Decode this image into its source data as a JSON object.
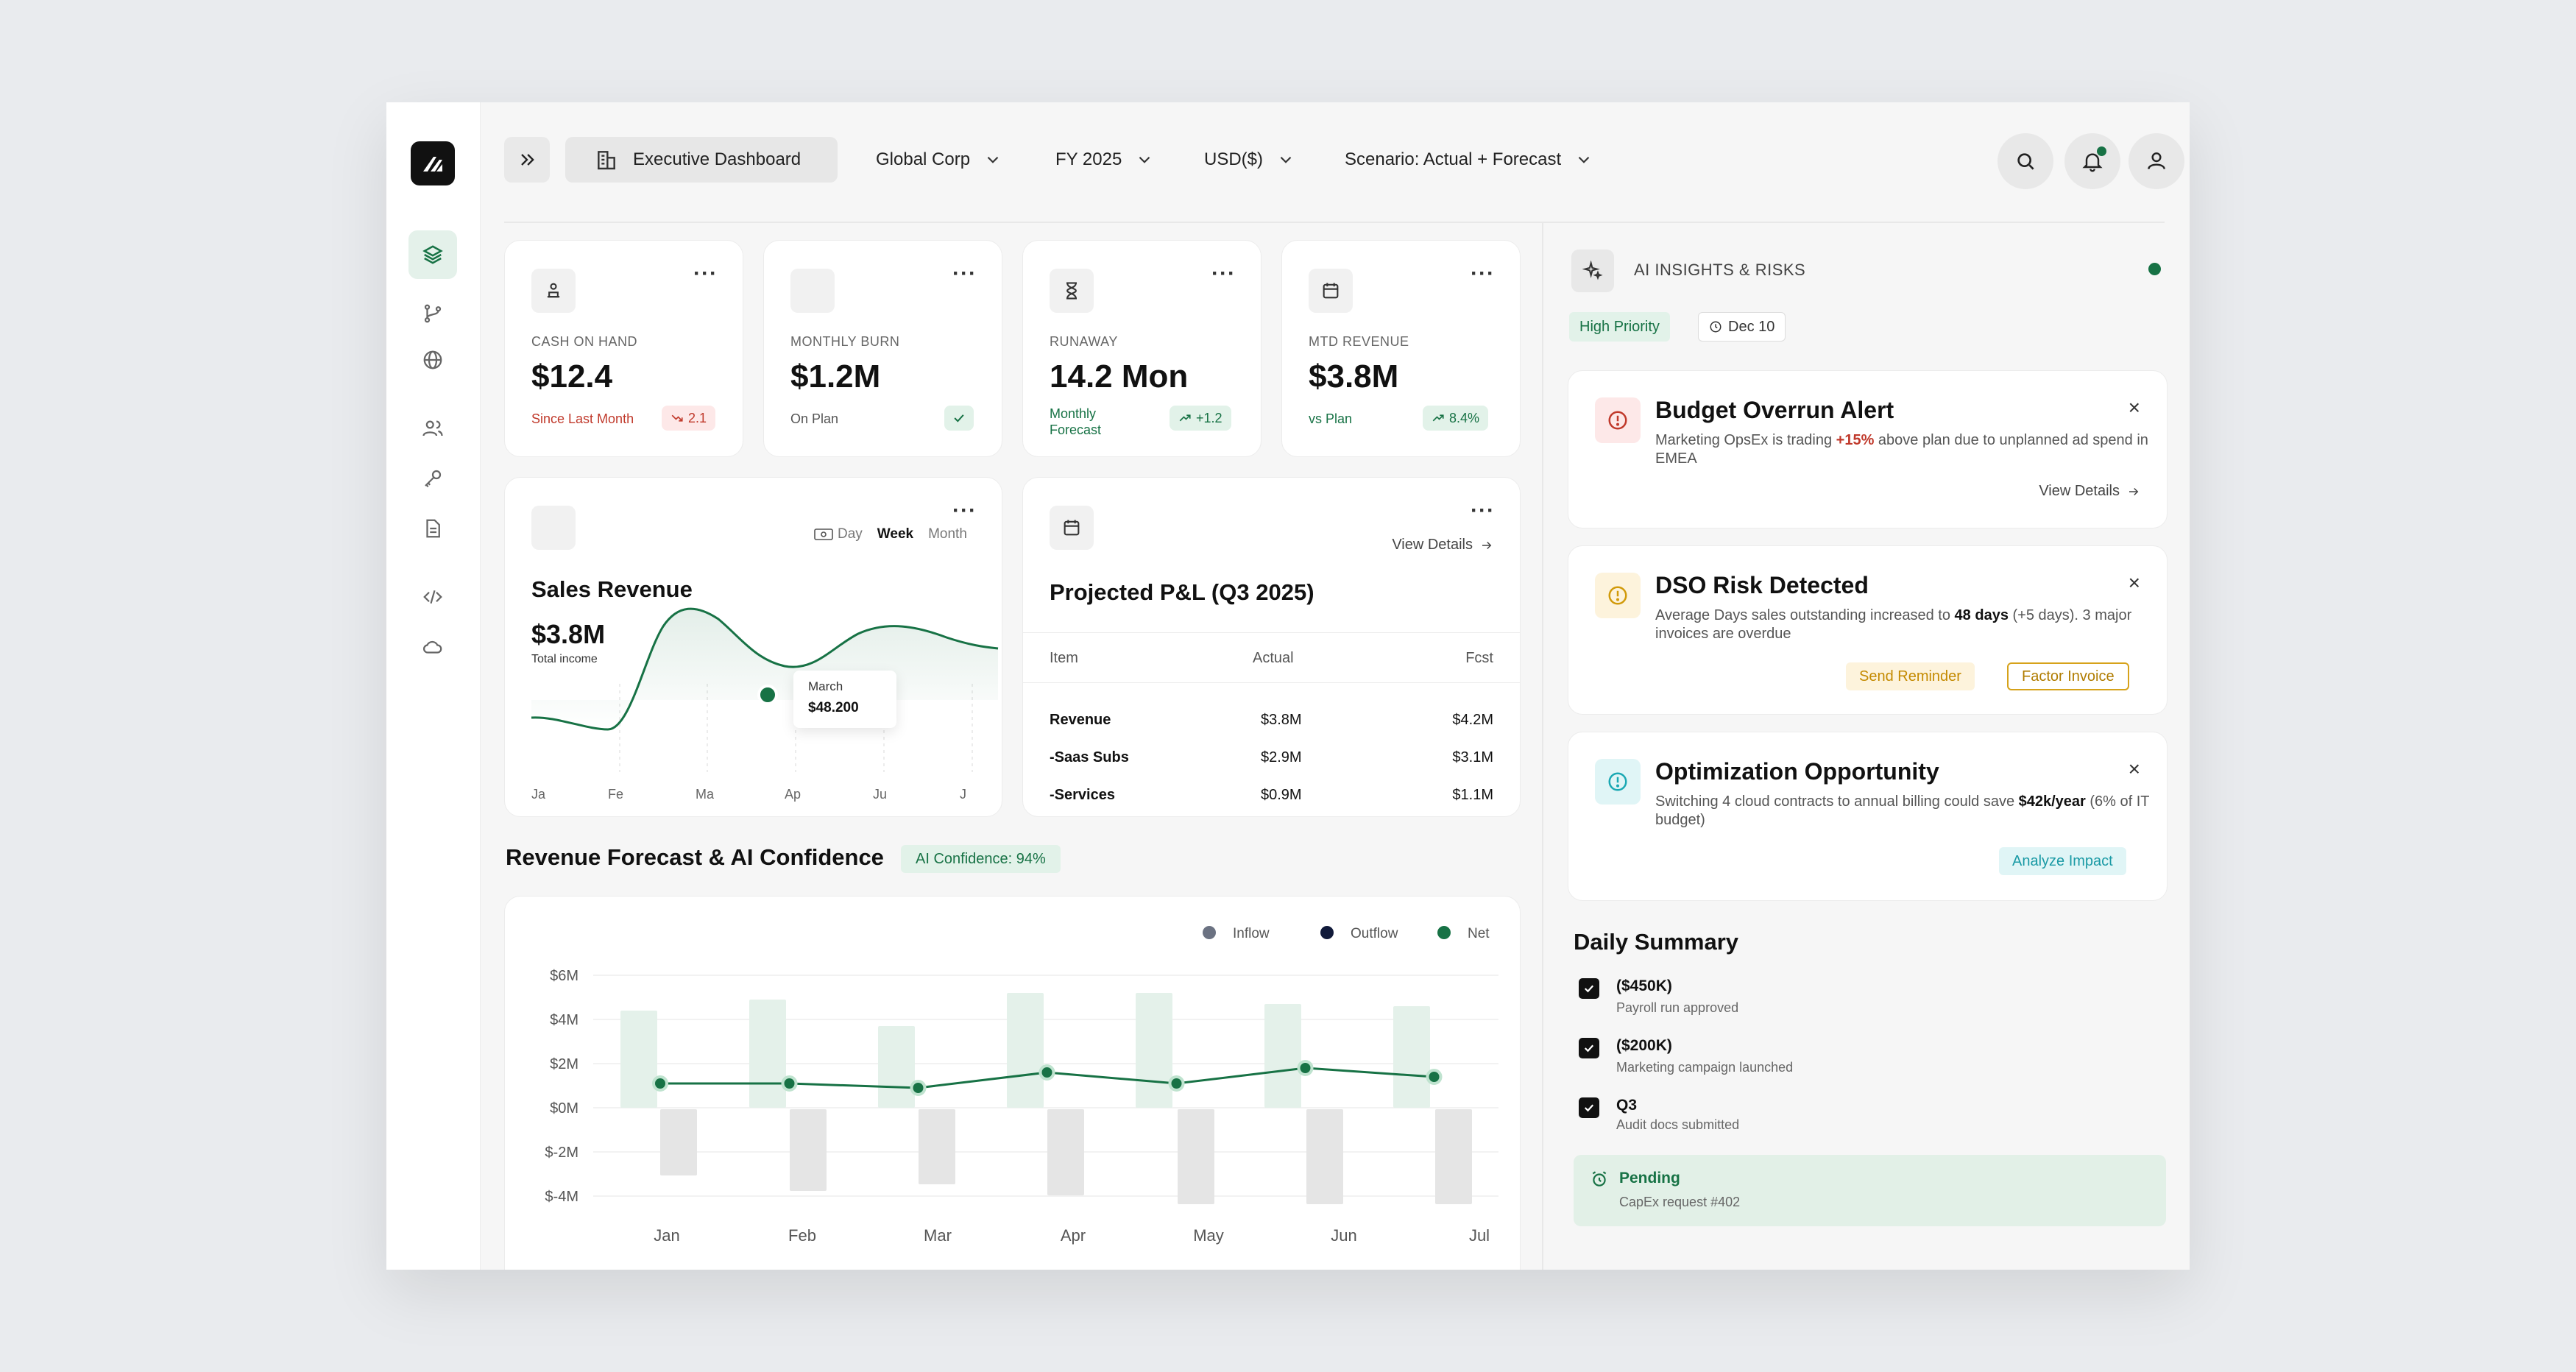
{
  "header": {
    "dashboard_label": "Executive Dashboard",
    "company": "Global Corp",
    "fiscal_year": "FY 2025",
    "currency": "USD($)",
    "scenario": "Scenario: Actual + Forecast"
  },
  "kpis": [
    {
      "label": "CASH ON HAND",
      "value": "$12.4",
      "sub": "Since Last Month",
      "badge": "2.1"
    },
    {
      "label": "MONTHLY BURN",
      "value": "$1.2M",
      "sub": "On Plan",
      "badge": ""
    },
    {
      "label": "RUNAWAY",
      "value": "14.2 Mon",
      "sub_line1": "Monthly",
      "sub_line2": "Forecast",
      "badge": "+1.2"
    },
    {
      "label": "MTD REVENUE",
      "value": "$3.8M",
      "sub": "vs Plan",
      "badge": "8.4%"
    }
  ],
  "sales": {
    "title": "Sales Revenue",
    "value": "$3.8M",
    "caption": "Total income",
    "periods": [
      "Day",
      "Week",
      "Month"
    ],
    "tooltip_month": "March",
    "tooltip_value": "$48.200",
    "months": [
      "Ja",
      "Fe",
      "Ma",
      "Ap",
      "Ju",
      "J"
    ]
  },
  "pl": {
    "view_details": "View Details",
    "title": "Projected P&L (Q3 2025)",
    "headers": [
      "Item",
      "Actual",
      "Fcst"
    ],
    "rows": [
      [
        "Revenue",
        "$3.8M",
        "$4.2M"
      ],
      [
        "-Saas Subs",
        "$2.9M",
        "$3.1M"
      ],
      [
        "-Services",
        "$0.9M",
        "$1.1M"
      ]
    ]
  },
  "forecast": {
    "title": "Revenue Forecast & AI Confidence",
    "confidence": "AI Confidence: 94%",
    "legend": [
      "Inflow",
      "Outflow",
      "Net"
    ]
  },
  "chart_data": {
    "type": "bar",
    "categories": [
      "Jan",
      "Feb",
      "Mar",
      "Apr",
      "May",
      "Jun",
      "Jul"
    ],
    "y_ticks": [
      "$6M",
      "$4M",
      "$2M",
      "$0M",
      "$-2M",
      "$-4M"
    ],
    "ylim": [
      -4,
      6
    ],
    "series": [
      {
        "name": "Inflow",
        "values": [
          4.4,
          4.9,
          3.7,
          5.2,
          5.2,
          4.7,
          4.6
        ]
      },
      {
        "name": "Outflow",
        "values": [
          -3.0,
          -3.7,
          -3.4,
          -3.9,
          -4.3,
          -4.3,
          -4.3
        ]
      },
      {
        "name": "Net",
        "values": [
          1.1,
          1.1,
          0.9,
          1.6,
          1.1,
          1.8,
          1.4
        ]
      }
    ],
    "colors": {
      "inflow": "#e4f1ea",
      "outflow": "#e5e5e5",
      "net": "#177245"
    }
  },
  "insights": {
    "title": "AI INSIGHTS & RISKS",
    "priority": "High Priority",
    "date": "Dec 10",
    "alerts": [
      {
        "title": "Budget Overrun Alert",
        "body_pre": "Marketing OpsEx is trading ",
        "body_em": "+15%",
        "body_post": " above plan due to unplanned ad spend in EMEA",
        "action": "View Details"
      },
      {
        "title": "DSO Risk Detected",
        "body_pre": "Average Days sales outstanding increased to ",
        "body_em": "48 days",
        "body_post": " (+5 days). 3 major invoices are overdue",
        "action1": "Send Reminder",
        "action2": "Factor Invoice"
      },
      {
        "title": "Optimization Opportunity",
        "body_pre": "Switching 4 cloud contracts to annual billing could save ",
        "body_em": "$42k/year",
        "body_post": " (6% of IT budget)",
        "action": "Analyze Impact"
      }
    ]
  },
  "daily": {
    "title": "Daily Summary",
    "items": [
      {
        "title": "($450K)",
        "sub": "Payroll run approved"
      },
      {
        "title": "($200K)",
        "sub": "Marketing campaign launched"
      },
      {
        "title": "Q3",
        "sub": "Audit docs submitted"
      }
    ],
    "pending_title": "Pending",
    "pending_sub": "CapEx request #402"
  }
}
